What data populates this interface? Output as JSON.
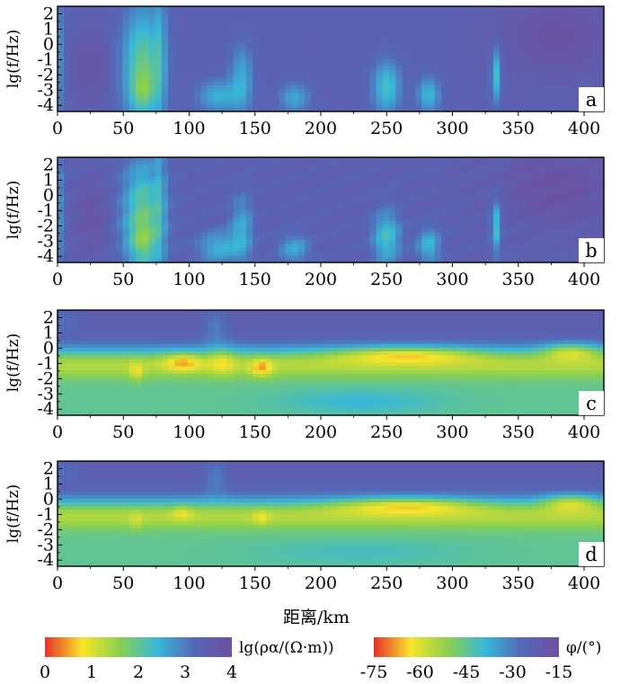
{
  "chart_data": {
    "type": "heatmap",
    "panels": [
      {
        "label": "a",
        "quantity": "resistivity"
      },
      {
        "label": "b",
        "quantity": "resistivity"
      },
      {
        "label": "c",
        "quantity": "phase"
      },
      {
        "label": "d",
        "quantity": "phase"
      }
    ],
    "xlabel": "距离/km",
    "ylabel": "lg(f/Hz)",
    "xticks": [
      0,
      50,
      100,
      150,
      200,
      250,
      300,
      350,
      400
    ],
    "yticks": [
      2,
      1,
      0,
      -1,
      -2,
      -3,
      -4
    ],
    "xlim": [
      0,
      415
    ],
    "ylim": [
      -4.4,
      2.5
    ],
    "colorbars": [
      {
        "title": "lg(ρα/(Ω·m))",
        "ticks": [
          "0",
          "1",
          "2",
          "3",
          "4"
        ],
        "colors": [
          "#e8302a",
          "#f8e52a",
          "#8ad04e",
          "#38b8d8",
          "#5468b8",
          "#6f4d9e"
        ]
      },
      {
        "title": "φ/(°)",
        "ticks": [
          "-75",
          "-60",
          "-45",
          "-30",
          "-15"
        ],
        "colors": [
          "#e8302a",
          "#f8e52a",
          "#8ad04e",
          "#38b8d8",
          "#5468b8",
          "#6f4d9e"
        ]
      }
    ]
  }
}
